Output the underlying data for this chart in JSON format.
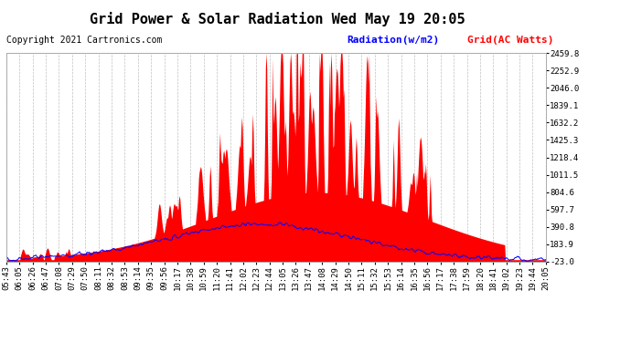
{
  "title": "Grid Power & Solar Radiation Wed May 19 20:05",
  "copyright": "Copyright 2021 Cartronics.com",
  "legend_radiation": "Radiation(w/m2)",
  "legend_grid": "Grid(AC Watts)",
  "ymin": -23.0,
  "ymax": 2459.8,
  "yticks": [
    -23.0,
    183.9,
    390.8,
    597.7,
    804.6,
    1011.5,
    1218.4,
    1425.3,
    1632.2,
    1839.1,
    2046.0,
    2252.9,
    2459.8
  ],
  "background_color": "#ffffff",
  "grid_color": "#c0c0c0",
  "fill_color": "#ff0000",
  "line_color_radiation": "#0000ff",
  "line_color_grid": "#ff0000",
  "title_fontsize": 11,
  "copyright_fontsize": 7,
  "legend_fontsize": 8,
  "tick_fontsize": 6.5,
  "x_labels": [
    "05:43",
    "06:05",
    "06:26",
    "06:47",
    "07:08",
    "07:29",
    "07:50",
    "08:11",
    "08:32",
    "08:53",
    "09:14",
    "09:35",
    "09:56",
    "10:17",
    "10:38",
    "10:59",
    "11:20",
    "11:41",
    "12:02",
    "12:23",
    "12:44",
    "13:05",
    "13:26",
    "13:47",
    "14:08",
    "14:29",
    "14:50",
    "15:11",
    "15:32",
    "15:53",
    "16:14",
    "16:35",
    "16:56",
    "17:17",
    "17:38",
    "17:59",
    "18:20",
    "18:41",
    "19:02",
    "19:23",
    "19:44",
    "20:05"
  ]
}
